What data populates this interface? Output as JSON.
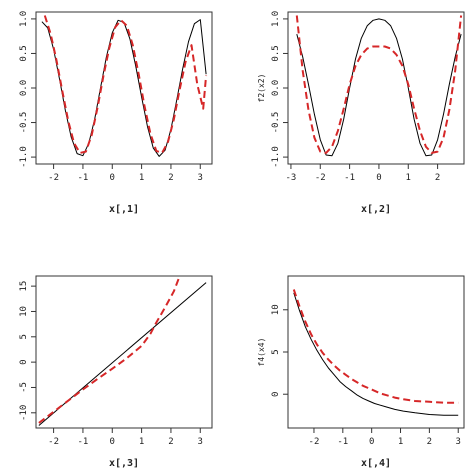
{
  "chart_data": [
    {
      "type": "line",
      "xlabel": "x[,1]",
      "ylabel": "",
      "xlim": [
        -2.6,
        3.4
      ],
      "ylim": [
        -1.1,
        1.1
      ],
      "xticks": [
        -2,
        -1,
        0,
        1,
        2,
        3
      ],
      "yticks": [
        -1.0,
        -0.5,
        0.0,
        0.5,
        1.0
      ],
      "ytick_labels": [
        "-1.0",
        "-0.5",
        "0.0",
        "0.5",
        "1.0"
      ],
      "series": [
        {
          "color": "#000000",
          "dash": "solid",
          "x": [
            -2.4,
            -2.2,
            -2.0,
            -1.8,
            -1.6,
            -1.4,
            -1.2,
            -1.0,
            -0.8,
            -0.6,
            -0.4,
            -0.2,
            0.0,
            0.2,
            0.4,
            0.6,
            0.8,
            1.0,
            1.2,
            1.4,
            1.6,
            1.8,
            2.0,
            2.2,
            2.4,
            2.6,
            2.8,
            3.0,
            3.2
          ],
          "y": [
            0.96,
            0.87,
            0.56,
            0.13,
            -0.32,
            -0.71,
            -0.95,
            -0.98,
            -0.8,
            -0.45,
            0.0,
            0.45,
            0.8,
            0.98,
            0.95,
            0.71,
            0.32,
            -0.13,
            -0.56,
            -0.87,
            -0.99,
            -0.9,
            -0.6,
            -0.17,
            0.28,
            0.67,
            0.93,
            0.99,
            0.2
          ]
        },
        {
          "color": "#d62728",
          "dash": "dashed",
          "x": [
            -2.3,
            -2.1,
            -1.9,
            -1.7,
            -1.5,
            -1.3,
            -1.1,
            -0.9,
            -0.7,
            -0.5,
            -0.3,
            -0.1,
            0.1,
            0.3,
            0.5,
            0.7,
            0.9,
            1.1,
            1.3,
            1.5,
            1.7,
            1.9,
            2.1,
            2.3,
            2.5,
            2.7,
            2.9,
            3.1,
            3.2
          ],
          "y": [
            1.05,
            0.78,
            0.4,
            -0.05,
            -0.48,
            -0.8,
            -0.94,
            -0.92,
            -0.68,
            -0.28,
            0.18,
            0.58,
            0.88,
            0.98,
            0.9,
            0.62,
            0.2,
            -0.26,
            -0.66,
            -0.91,
            -0.94,
            -0.78,
            -0.45,
            -0.02,
            0.38,
            0.62,
            0.05,
            -0.3,
            0.18
          ]
        }
      ]
    },
    {
      "type": "line",
      "xlabel": "x[,2]",
      "ylabel": "f2(x2)",
      "xlim": [
        -3.1,
        2.9
      ],
      "ylim": [
        -1.1,
        1.1
      ],
      "xticks": [
        -3,
        -2,
        -1,
        0,
        1,
        2
      ],
      "yticks": [
        -1.0,
        -0.5,
        0.0,
        0.5,
        1.0
      ],
      "ytick_labels": [
        "-1.0",
        "-0.5",
        "0.0",
        "0.5",
        "1.0"
      ],
      "series": [
        {
          "color": "#000000",
          "dash": "solid",
          "x": [
            -2.8,
            -2.6,
            -2.4,
            -2.2,
            -2.0,
            -1.8,
            -1.6,
            -1.4,
            -1.2,
            -1.0,
            -0.8,
            -0.6,
            -0.4,
            -0.2,
            0.0,
            0.2,
            0.4,
            0.6,
            0.8,
            1.0,
            1.2,
            1.4,
            1.6,
            1.8,
            2.0,
            2.2,
            2.4,
            2.6,
            2.8
          ],
          "y": [
            0.78,
            0.45,
            0.05,
            -0.38,
            -0.75,
            -0.97,
            -0.98,
            -0.8,
            -0.45,
            0.0,
            0.42,
            0.72,
            0.9,
            0.98,
            1.0,
            0.98,
            0.9,
            0.72,
            0.42,
            0.0,
            -0.45,
            -0.8,
            -0.98,
            -0.97,
            -0.75,
            -0.38,
            0.05,
            0.45,
            0.78
          ]
        },
        {
          "color": "#d62728",
          "dash": "dashed",
          "x": [
            -2.8,
            -2.6,
            -2.4,
            -2.2,
            -2.0,
            -1.8,
            -1.6,
            -1.4,
            -1.2,
            -1.0,
            -0.8,
            -0.6,
            -0.4,
            -0.2,
            0.0,
            0.2,
            0.4,
            0.6,
            0.8,
            1.0,
            1.2,
            1.4,
            1.6,
            1.8,
            2.0,
            2.2,
            2.4,
            2.6,
            2.8
          ],
          "y": [
            1.05,
            0.25,
            -0.32,
            -0.72,
            -0.92,
            -0.94,
            -0.85,
            -0.62,
            -0.3,
            0.05,
            0.32,
            0.48,
            0.57,
            0.6,
            0.6,
            0.6,
            0.57,
            0.48,
            0.32,
            0.05,
            -0.3,
            -0.62,
            -0.85,
            -0.94,
            -0.92,
            -0.72,
            -0.32,
            0.25,
            1.05
          ]
        }
      ]
    },
    {
      "type": "line",
      "xlabel": "x[,3]",
      "ylabel": "",
      "xlim": [
        -2.6,
        3.4
      ],
      "ylim": [
        -13,
        17
      ],
      "xticks": [
        -2,
        -1,
        0,
        1,
        2,
        3
      ],
      "yticks": [
        -10,
        -5,
        0,
        5,
        10,
        15
      ],
      "ytick_labels": [
        "-10",
        "-5",
        "0",
        "5",
        "10",
        "15"
      ],
      "series": [
        {
          "color": "#000000",
          "dash": "solid",
          "x": [
            -2.5,
            3.2
          ],
          "y": [
            -12.5,
            15.7
          ]
        },
        {
          "color": "#d62728",
          "dash": "dashed",
          "x": [
            -2.5,
            -2.0,
            -1.5,
            -1.0,
            -0.5,
            0.0,
            0.5,
            1.0,
            1.3,
            1.5,
            1.8,
            2.1,
            2.3
          ],
          "y": [
            -12.0,
            -9.8,
            -7.6,
            -5.4,
            -3.3,
            -1.3,
            0.8,
            3.2,
            5.6,
            7.8,
            10.8,
            14.0,
            17.0
          ]
        }
      ]
    },
    {
      "type": "line",
      "xlabel": "x[,4]",
      "ylabel": "f4(x4)",
      "xlim": [
        -2.9,
        3.2
      ],
      "ylim": [
        -4,
        14
      ],
      "xticks": [
        -2,
        -1,
        0,
        1,
        2,
        3
      ],
      "yticks": [
        0,
        5,
        10
      ],
      "ytick_labels": [
        "0",
        "5",
        "10"
      ],
      "series": [
        {
          "color": "#000000",
          "dash": "solid",
          "x": [
            -2.7,
            -2.5,
            -2.3,
            -2.1,
            -1.9,
            -1.7,
            -1.5,
            -1.3,
            -1.1,
            -0.9,
            -0.7,
            -0.5,
            -0.3,
            -0.1,
            0.1,
            0.3,
            0.5,
            0.8,
            1.1,
            1.5,
            2.0,
            2.5,
            3.0
          ],
          "y": [
            12.0,
            9.9,
            8.0,
            6.5,
            5.2,
            4.1,
            3.1,
            2.3,
            1.5,
            0.9,
            0.4,
            -0.1,
            -0.5,
            -0.8,
            -1.1,
            -1.3,
            -1.5,
            -1.8,
            -2.0,
            -2.2,
            -2.4,
            -2.5,
            -2.5
          ]
        },
        {
          "color": "#d62728",
          "dash": "dashed",
          "x": [
            -2.7,
            -2.5,
            -2.3,
            -2.1,
            -1.9,
            -1.7,
            -1.5,
            -1.3,
            -1.1,
            -0.9,
            -0.7,
            -0.5,
            -0.3,
            -0.1,
            0.1,
            0.3,
            0.5,
            0.8,
            1.1,
            1.5,
            2.0,
            2.5,
            3.0
          ],
          "y": [
            12.4,
            10.4,
            8.6,
            7.1,
            5.9,
            4.9,
            4.1,
            3.4,
            2.8,
            2.3,
            1.8,
            1.4,
            1.0,
            0.7,
            0.4,
            0.1,
            -0.1,
            -0.4,
            -0.6,
            -0.8,
            -0.9,
            -1.0,
            -1.0
          ]
        }
      ]
    }
  ]
}
